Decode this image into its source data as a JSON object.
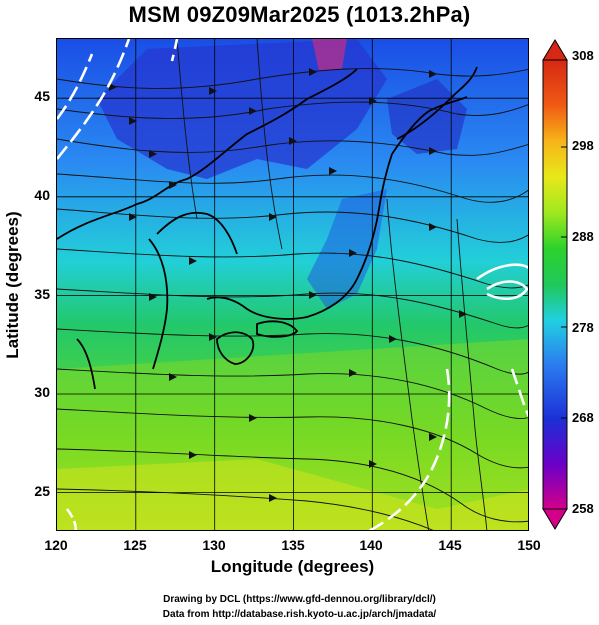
{
  "title": "MSM 09Z09Mar2025 (1013.2hPa)",
  "x_axis": {
    "label": "Longitude (degrees)",
    "ticks": [
      "120",
      "125",
      "130",
      "135",
      "140",
      "145",
      "150"
    ]
  },
  "y_axis": {
    "label": "Latitude  (degrees)",
    "ticks": [
      "45",
      "40",
      "35",
      "30",
      "25"
    ]
  },
  "colorbar": {
    "ticks": [
      "308",
      "298",
      "288",
      "278",
      "268",
      "258"
    ],
    "min": 258,
    "max": 308,
    "colors": [
      "#d4008a",
      "#6a00c8",
      "#1c2fd6",
      "#2b7cf0",
      "#20d0e0",
      "#20c85a",
      "#2cd22c",
      "#a0e81e",
      "#e8e81a",
      "#f7b418",
      "#f05a14",
      "#d62814"
    ]
  },
  "map": {
    "lon_range": [
      120,
      150
    ],
    "lat_range": [
      22.5,
      47.5
    ],
    "grid": true,
    "content": "surface temperature shading with streamlines and coastlines"
  },
  "footer": {
    "line1": "Drawing by DCL (https://www.gfd-dennou.org/library/dcl/)",
    "line2": "Data from http://database.rish.kyoto-u.ac.jp/arch/jmadata/"
  }
}
